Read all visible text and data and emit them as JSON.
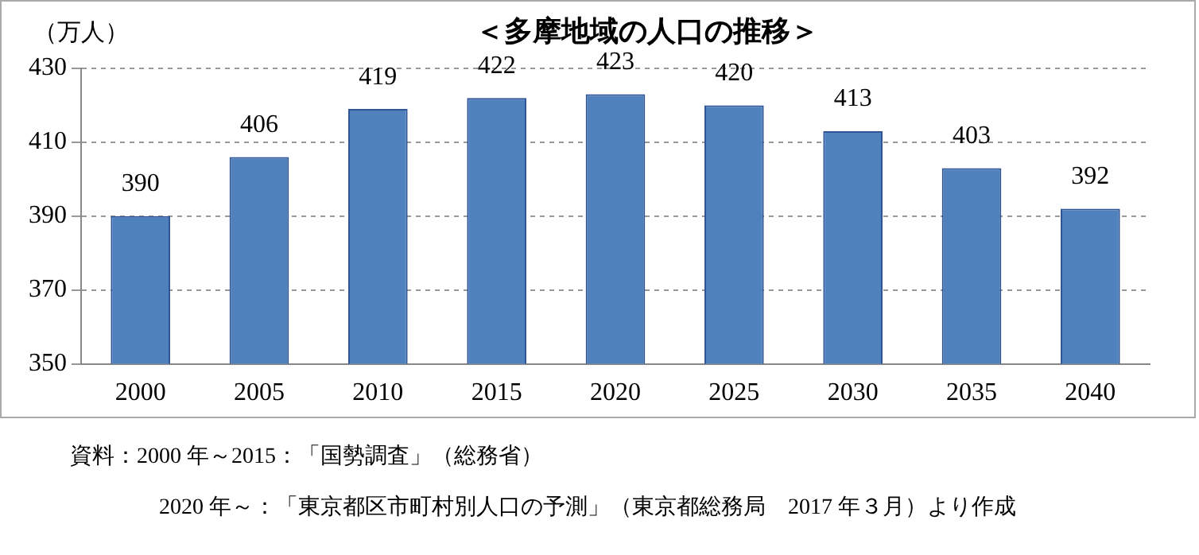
{
  "chart_data": {
    "type": "bar",
    "title": "＜多摩地域の人口の推移＞",
    "ylabel": "（万人）",
    "categories": [
      "2000",
      "2005",
      "2010",
      "2015",
      "2020",
      "2025",
      "2030",
      "2035",
      "2040"
    ],
    "values": [
      390,
      406,
      419,
      422,
      423,
      420,
      413,
      403,
      392
    ],
    "color": "#4f81bd",
    "ylim": [
      350,
      430
    ],
    "yticks": [
      350,
      370,
      390,
      410,
      430
    ],
    "grid": "y",
    "data_labels": true,
    "annotations": [
      "資料：2000 年～2015：「国勢調査」（総務省）",
      "2020 年～：「東京都区市町村別人口の予測」（東京都総務局　2017 年３月）より作成"
    ]
  }
}
